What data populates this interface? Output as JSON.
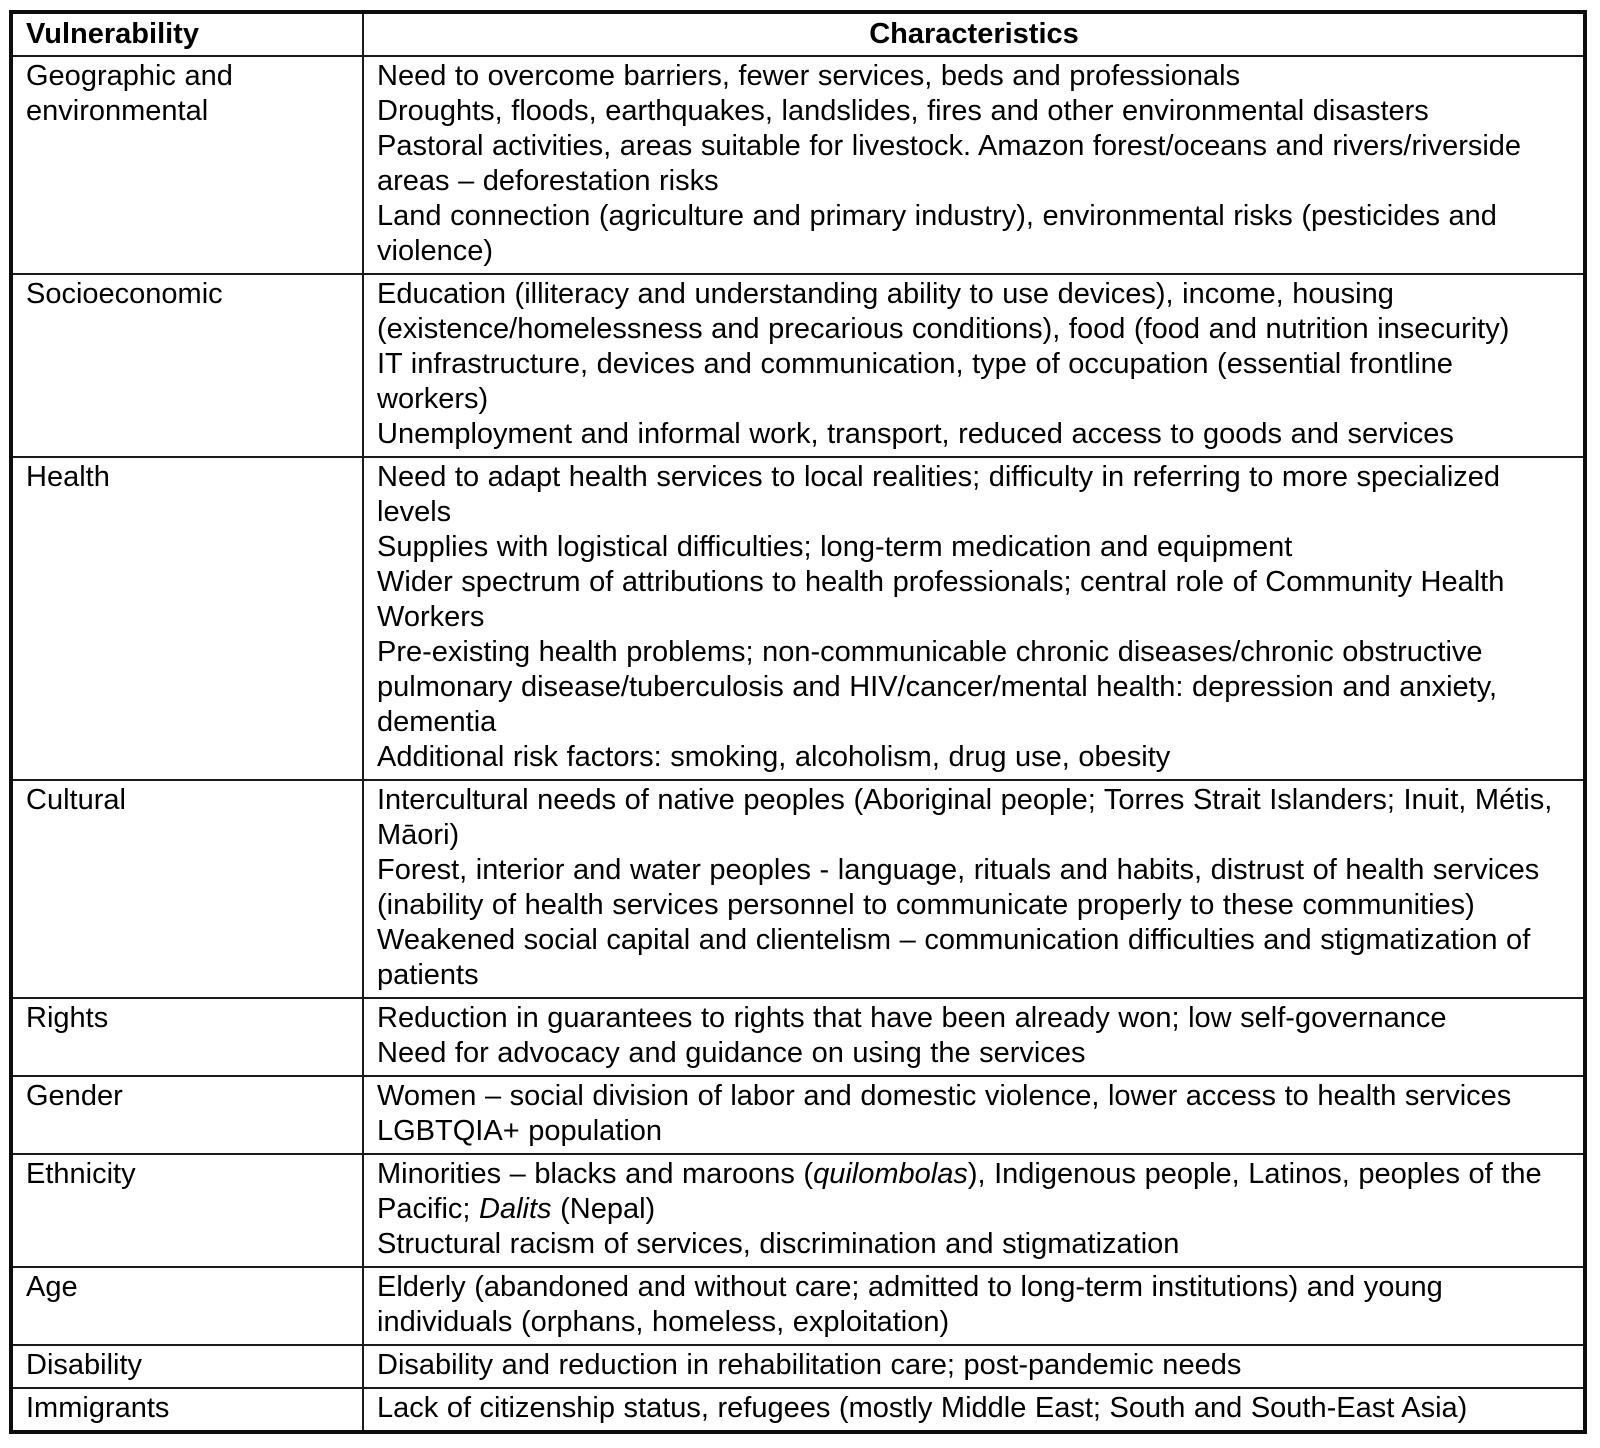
{
  "table": {
    "headers": {
      "vulnerability": "Vulnerability",
      "characteristics": "Characteristics"
    },
    "rows": [
      {
        "vulnerability": "Geographic and environmental",
        "characteristics": [
          [
            {
              "t": "Need to overcome barriers, fewer services, beds and professionals"
            }
          ],
          [
            {
              "t": "Droughts, floods, earthquakes, landslides, fires and other environmental disasters"
            }
          ],
          [
            {
              "t": "Pastoral activities, areas suitable for livestock. Amazon forest/oceans and rivers/riverside areas – deforestation risks"
            }
          ],
          [
            {
              "t": "Land connection (agriculture and primary industry), environmental risks (pesticides and violence)"
            }
          ]
        ]
      },
      {
        "vulnerability": "Socioeconomic",
        "characteristics": [
          [
            {
              "t": "Education (illiteracy and understanding ability to use devices), income, housing (existence/homelessness and precarious conditions), food (food and nutrition insecurity)"
            }
          ],
          [
            {
              "t": "IT infrastructure, devices and communication, type of occupation (essential frontline workers)"
            }
          ],
          [
            {
              "t": "Unemployment and informal work, transport, reduced access to goods and services"
            }
          ]
        ]
      },
      {
        "vulnerability": "Health",
        "characteristics": [
          [
            {
              "t": "Need to adapt health services to local realities; difficulty in referring to more specialized levels"
            }
          ],
          [
            {
              "t": "Supplies with logistical difficulties; long-term medication and equipment"
            }
          ],
          [
            {
              "t": "Wider spectrum of attributions to health professionals; central role of Community Health Workers"
            }
          ],
          [
            {
              "t": "Pre-existing health problems; non-communicable chronic diseases/chronic obstructive pulmonary disease/tuberculosis and HIV/cancer/mental health: depression and anxiety, dementia"
            }
          ],
          [
            {
              "t": "Additional risk factors: smoking, alcoholism, drug use, obesity"
            }
          ]
        ]
      },
      {
        "vulnerability": "Cultural",
        "characteristics": [
          [
            {
              "t": "Intercultural needs of native peoples (Aboriginal people; Torres Strait Islanders; Inuit, Métis, Māori)"
            }
          ],
          [
            {
              "t": "Forest, interior and water peoples - language, rituals and habits, distrust of health services (inability of health services personnel to communicate properly to these communities)"
            }
          ],
          [
            {
              "t": "Weakened social capital and clientelism – communication difficulties and stigmatization of patients"
            }
          ]
        ]
      },
      {
        "vulnerability": "Rights",
        "characteristics": [
          [
            {
              "t": "Reduction in guarantees to rights that have been already won; low self-governance"
            }
          ],
          [
            {
              "t": "Need for advocacy and guidance on using the services"
            }
          ]
        ]
      },
      {
        "vulnerability": "Gender",
        "characteristics": [
          [
            {
              "t": "Women – social division of labor and domestic violence, lower access to health services"
            }
          ],
          [
            {
              "t": "LGBTQIA+ population"
            }
          ]
        ]
      },
      {
        "vulnerability": "Ethnicity",
        "characteristics": [
          [
            {
              "t": "Minorities – blacks and maroons ("
            },
            {
              "t": "quilombolas",
              "i": true
            },
            {
              "t": "), Indigenous people, Latinos, peoples of the Pacific; "
            },
            {
              "t": "Dalits",
              "i": true
            },
            {
              "t": " (Nepal)"
            }
          ],
          [
            {
              "t": "Structural racism of services, discrimination and stigmatization"
            }
          ]
        ]
      },
      {
        "vulnerability": "Age",
        "characteristics": [
          [
            {
              "t": "Elderly (abandoned and without care; admitted to long-term institutions) and young individuals (orphans, homeless, exploitation)"
            }
          ]
        ]
      },
      {
        "vulnerability": "Disability",
        "characteristics": [
          [
            {
              "t": "Disability and reduction in rehabilitation care; post-pandemic needs"
            }
          ]
        ]
      },
      {
        "vulnerability": "Immigrants",
        "characteristics": [
          [
            {
              "t": "Lack of citizenship status, refugees (mostly Middle East; South and South-East Asia)"
            }
          ]
        ]
      }
    ]
  }
}
